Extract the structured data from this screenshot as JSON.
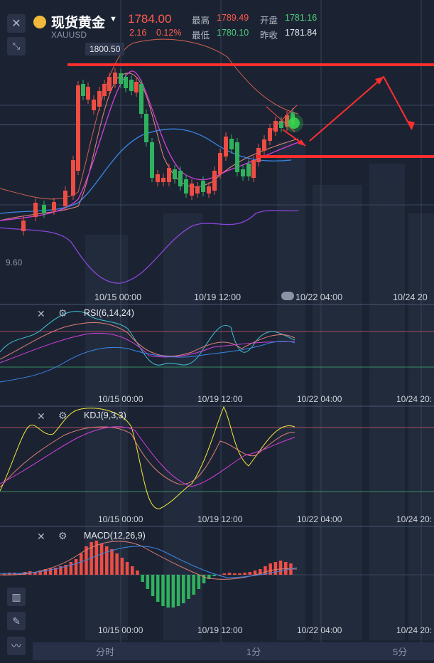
{
  "header": {
    "symbol_name": "现货黄金",
    "symbol_code": "XAUUSD",
    "dropdown_icon": "caret-down-icon",
    "price": "1784.00",
    "change": "2.16",
    "change_pct": "0.12%",
    "high_label": "最高",
    "high_value": "1789.49",
    "open_label": "开盘",
    "open_value": "1781.16",
    "low_label": "最低",
    "low_value": "1780.10",
    "prev_close_label": "昨收",
    "prev_close_value": "1781.84"
  },
  "tools": {
    "close_icon": "close-icon",
    "collapse_icon": "collapse-arrows-icon",
    "candles_icon": "candlestick-icon",
    "pen_icon": "pen-icon",
    "indicator_icon": "line-chart-icon"
  },
  "main_chart": {
    "high_marker": "1800.50",
    "low_marker_partial": "9.60",
    "time_labels": [
      "10/15 00:00",
      "10/19 12:00",
      "10/22 04:00",
      "10/24 20"
    ]
  },
  "rsi": {
    "label": "RSI(6,14,24)",
    "time_labels": [
      "10/15 00:00",
      "10/19 12:00",
      "10/22 04:00",
      "10/24 20:"
    ]
  },
  "kdj": {
    "label": "KDJ(9,3,3)",
    "time_labels": [
      "10/15 00:00",
      "10/19 12:00",
      "10/22 04:00",
      "10/24 20:"
    ]
  },
  "macd": {
    "label": "MACD(12,26,9)",
    "time_labels": [
      "10/15 00:00",
      "10/19 12:00",
      "10/22 04:00",
      "10/24 20:"
    ]
  },
  "timeframes": [
    "分时",
    "1分",
    "5分"
  ],
  "colors": {
    "up": "#ee4d44",
    "down": "#2fb25d",
    "bg": "#1b2333",
    "annotation": "#ff2f2f"
  }
}
